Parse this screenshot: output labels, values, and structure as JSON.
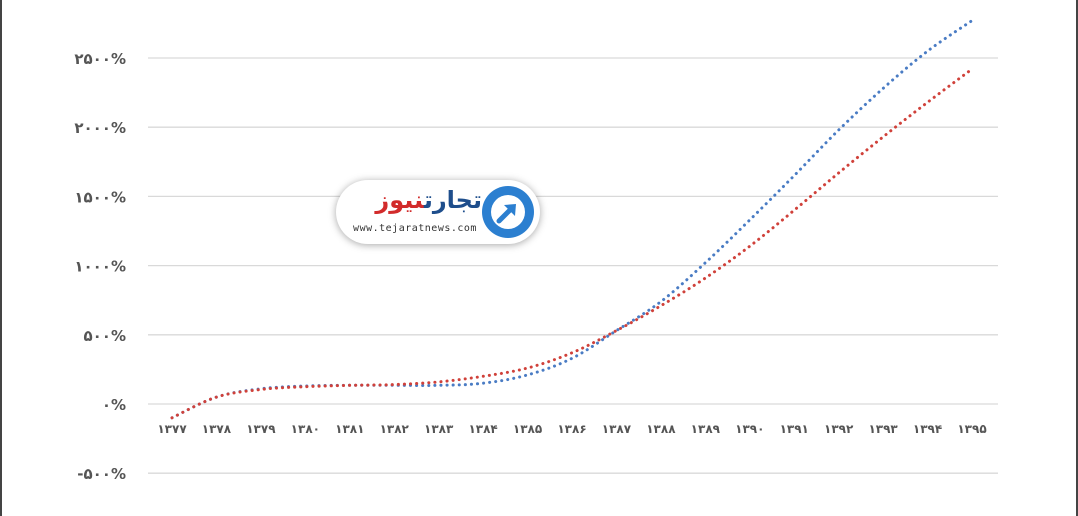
{
  "chart_data": {
    "type": "line",
    "title": "",
    "xlabel": "",
    "ylabel": "",
    "categories": [
      "۱۳۷۷",
      "۱۳۷۸",
      "۱۳۷۹",
      "۱۳۸۰",
      "۱۳۸۱",
      "۱۳۸۲",
      "۱۳۸۳",
      "۱۳۸۴",
      "۱۳۸۵",
      "۱۳۸۶",
      "۱۳۸۷",
      "۱۳۸۸",
      "۱۳۸۹",
      "۱۳۹۰",
      "۱۳۹۱",
      "۱۳۹۲",
      "۱۳۹۳",
      "۱۳۹۴",
      "۱۳۹۵"
    ],
    "ylim": [
      -500,
      2700
    ],
    "y_ticks": [
      -500,
      0,
      500,
      1000,
      1500,
      2000,
      2500
    ],
    "y_tick_labels": [
      "-۵۰۰%",
      "۰%",
      "۵۰۰%",
      "۱۰۰۰%",
      "۱۵۰۰%",
      "۲۰۰۰%",
      "۲۵۰۰%"
    ],
    "grid": true,
    "line_style": "dotted",
    "series": [
      {
        "color": "#4a7cc4",
        "values": [
          -100,
          50,
          110,
          130,
          135,
          135,
          135,
          150,
          210,
          330,
          530,
          740,
          1020,
          1330,
          1650,
          1980,
          2280,
          2550,
          2770
        ]
      },
      {
        "color": "#d0413a",
        "values": [
          -100,
          50,
          105,
          125,
          135,
          140,
          160,
          200,
          260,
          370,
          530,
          710,
          910,
          1140,
          1400,
          1670,
          1930,
          2180,
          2420
        ]
      }
    ]
  },
  "logo": {
    "name_part1": "تجارت",
    "name_part2": "نیوز",
    "url": "www.tejaratnews.com"
  }
}
